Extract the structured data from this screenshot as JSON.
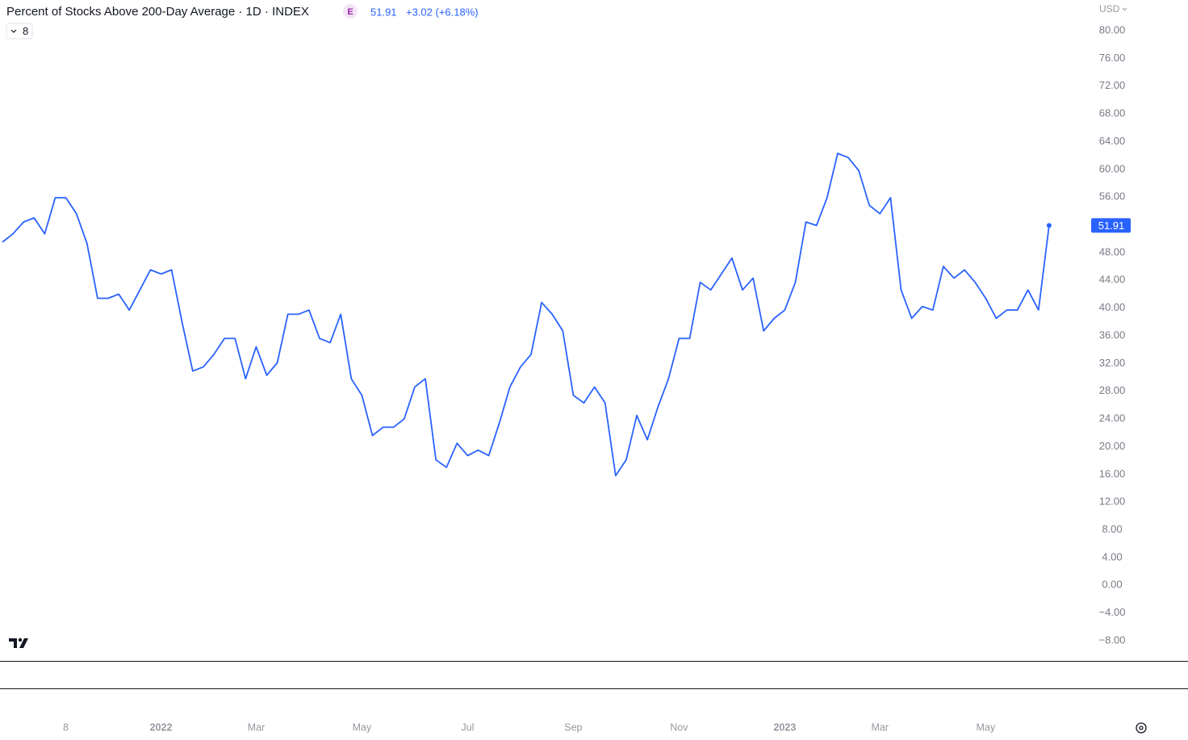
{
  "chart_data": {
    "type": "line",
    "title": "Percent of Stocks Above 200-Day Average · 1D · INDEX",
    "badge": "E",
    "last_price": 51.91,
    "change": "+3.02 (+6.18%)",
    "currency": "USD",
    "interval_menu": "8",
    "categories": [
      null,
      null,
      null,
      null,
      null,
      null,
      "8",
      null,
      null,
      null,
      null,
      null,
      null,
      null,
      null,
      "2022",
      null,
      null,
      null,
      null,
      null,
      null,
      null,
      null,
      "Mar",
      null,
      null,
      null,
      null,
      null,
      null,
      null,
      null,
      null,
      "May",
      null,
      null,
      null,
      null,
      null,
      null,
      null,
      null,
      null,
      "Jul",
      null,
      null,
      null,
      null,
      null,
      null,
      null,
      null,
      null,
      "Sep",
      null,
      null,
      null,
      null,
      null,
      null,
      null,
      null,
      null,
      "Nov",
      null,
      null,
      null,
      null,
      null,
      null,
      null,
      null,
      null,
      "2023",
      null,
      null,
      null,
      null,
      null,
      null,
      null,
      null,
      "Mar",
      null,
      null,
      null,
      null,
      null,
      null,
      null,
      null,
      null,
      "May",
      null,
      null,
      null,
      null,
      null,
      null
    ],
    "series": [
      {
        "name": "Percent of Stocks Above 200-Day Average",
        "color": "#2962ff",
        "values": [
          49.5,
          50.7,
          52.4,
          53.0,
          50.7,
          55.9,
          55.9,
          53.6,
          49.3,
          41.4,
          41.4,
          42.0,
          39.7,
          42.6,
          45.5,
          44.9,
          45.5,
          37.9,
          30.9,
          31.5,
          33.3,
          35.6,
          35.6,
          29.8,
          34.4,
          30.3,
          32.1,
          39.1,
          39.1,
          39.7,
          35.6,
          35.0,
          39.1,
          29.8,
          27.4,
          21.6,
          22.8,
          22.8,
          24.0,
          28.6,
          29.8,
          18.1,
          17.0,
          20.5,
          18.7,
          19.5,
          18.7,
          23.4,
          28.6,
          31.5,
          33.3,
          40.8,
          39.1,
          36.7,
          27.4,
          26.3,
          28.6,
          26.3,
          15.8,
          18.1,
          24.5,
          21.0,
          25.7,
          29.8,
          35.6,
          35.6,
          43.7,
          42.6,
          44.9,
          47.2,
          42.6,
          44.3,
          36.7,
          38.5,
          39.7,
          43.7,
          52.4,
          51.9,
          55.9,
          62.3,
          61.7,
          59.8,
          54.8,
          53.6,
          55.9,
          42.6,
          38.5,
          40.2,
          39.7,
          46.0,
          44.3,
          45.5,
          43.7,
          41.4,
          38.5,
          39.7,
          39.7,
          42.6,
          39.7,
          51.91
        ]
      }
    ],
    "ylim": [
      -8,
      80
    ],
    "yticks": [
      {
        "value": 80,
        "label": "80.00"
      },
      {
        "value": 76,
        "label": "76.00"
      },
      {
        "value": 72,
        "label": "72.00"
      },
      {
        "value": 68,
        "label": "68.00"
      },
      {
        "value": 64,
        "label": "64.00"
      },
      {
        "value": 60,
        "label": "60.00"
      },
      {
        "value": 56,
        "label": "56.00"
      },
      {
        "value": 52,
        "label": "52.00"
      },
      {
        "value": 48,
        "label": "48.00"
      },
      {
        "value": 44,
        "label": "44.00"
      },
      {
        "value": 40,
        "label": "40.00"
      },
      {
        "value": 36,
        "label": "36.00"
      },
      {
        "value": 32,
        "label": "32.00"
      },
      {
        "value": 28,
        "label": "28.00"
      },
      {
        "value": 24,
        "label": "24.00"
      },
      {
        "value": 20,
        "label": "20.00"
      },
      {
        "value": 16,
        "label": "16.00"
      },
      {
        "value": 12,
        "label": "12.00"
      },
      {
        "value": 8,
        "label": "8.00"
      },
      {
        "value": 4,
        "label": "4.00"
      },
      {
        "value": 0,
        "label": "0.00"
      },
      {
        "value": -4,
        "label": "−4.00"
      },
      {
        "value": -8,
        "label": "−8.00"
      }
    ],
    "grid": false
  }
}
